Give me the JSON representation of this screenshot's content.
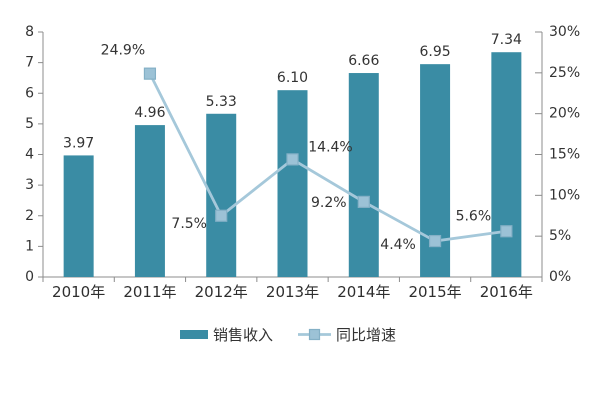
{
  "chart": {
    "legend": [
      {
        "label": "销售收入",
        "swatch": "bar"
      },
      {
        "label": "同比增速",
        "swatch": "line-marker"
      }
    ],
    "colors": {
      "bar": "#3a8ca4",
      "line": "#a5c8da",
      "marker_fill": "#9cc2d6",
      "marker_stroke": "#84b0c6",
      "axis": "#8c8c8c",
      "text": "#333333",
      "background": "#ffffff"
    }
  },
  "chart_data": {
    "type": "combo-bar-line",
    "categories": [
      "2010年",
      "2011年",
      "2012年",
      "2013年",
      "2014年",
      "2015年",
      "2016年"
    ],
    "series": [
      {
        "name": "销售收入",
        "type": "bar",
        "axis": "left",
        "values": [
          3.97,
          4.96,
          5.33,
          6.1,
          6.66,
          6.95,
          7.34
        ],
        "labels": [
          "3.97",
          "4.96",
          "5.33",
          "6.10",
          "6.66",
          "6.95",
          "7.34"
        ]
      },
      {
        "name": "同比增速",
        "type": "line",
        "axis": "right",
        "values": [
          null,
          24.9,
          7.5,
          14.4,
          9.2,
          4.4,
          5.6
        ],
        "labels": [
          null,
          "24.9%",
          "7.5%",
          "14.4%",
          "9.2%",
          "4.4%",
          "5.6%"
        ]
      }
    ],
    "left_axis": {
      "min": 0,
      "max": 8,
      "step": 1,
      "ticks": [
        "0",
        "1",
        "2",
        "3",
        "4",
        "5",
        "6",
        "7",
        "8"
      ]
    },
    "right_axis": {
      "min": 0,
      "max": 30,
      "step": 5,
      "ticks": [
        "0%",
        "5%",
        "10%",
        "15%",
        "20%",
        "25%",
        "30%"
      ]
    },
    "grid": false,
    "legend_position": "bottom"
  }
}
